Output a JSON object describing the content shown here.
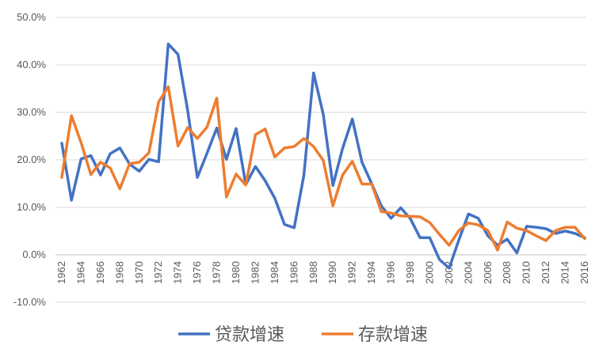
{
  "chart_data": {
    "type": "line",
    "title": "",
    "xlabel": "",
    "ylabel": "",
    "x": [
      1962,
      1963,
      1964,
      1965,
      1966,
      1967,
      1968,
      1969,
      1970,
      1971,
      1972,
      1973,
      1974,
      1975,
      1976,
      1977,
      1978,
      1979,
      1980,
      1981,
      1982,
      1983,
      1984,
      1985,
      1986,
      1987,
      1988,
      1989,
      1990,
      1991,
      1992,
      1993,
      1994,
      1995,
      1996,
      1997,
      1998,
      1999,
      2000,
      2001,
      2002,
      2003,
      2004,
      2005,
      2006,
      2007,
      2008,
      2009,
      2010,
      2011,
      2012,
      2013,
      2014,
      2015,
      2016
    ],
    "x_tick_labels": [
      "1962",
      "1964",
      "1966",
      "1968",
      "1970",
      "1972",
      "1974",
      "1976",
      "1978",
      "1980",
      "1982",
      "1984",
      "1986",
      "1988",
      "1990",
      "1992",
      "1994",
      "1996",
      "1998",
      "2000",
      "2002",
      "2004",
      "2006",
      "2008",
      "2010",
      "2012",
      "2014",
      "2016"
    ],
    "y_tick_labels": [
      "50.0%",
      "40.0%",
      "30.0%",
      "20.0%",
      "10.0%",
      "0.0%",
      "-10.0%"
    ],
    "ylim": [
      -10,
      50
    ],
    "y_unit": "%",
    "grid": true,
    "legend_position": "bottom",
    "series": [
      {
        "name": "贷款增速",
        "color": "#4472c4",
        "values": [
          23.5,
          11.5,
          20.2,
          20.9,
          16.8,
          21.3,
          22.5,
          19.1,
          17.6,
          20.1,
          19.6,
          44.4,
          42.2,
          30.4,
          16.3,
          21.4,
          26.7,
          20.1,
          26.6,
          14.8,
          18.6,
          15.6,
          11.9,
          6.4,
          5.7,
          16.8,
          38.3,
          29.6,
          14.6,
          22.4,
          28.6,
          19.5,
          15.0,
          10.3,
          7.7,
          9.9,
          7.6,
          3.6,
          3.6,
          -1.0,
          -2.8,
          3.1,
          8.6,
          7.7,
          4.0,
          2.0,
          3.3,
          0.4,
          6.0,
          5.8,
          5.5,
          4.5,
          5.0,
          4.5,
          3.6
        ]
      },
      {
        "name": "存款增速",
        "color": "#ed7d31",
        "values": [
          16.3,
          29.3,
          23.6,
          16.9,
          19.5,
          18.3,
          13.9,
          19.2,
          19.5,
          21.5,
          32.2,
          35.4,
          22.9,
          26.8,
          24.5,
          26.9,
          33.0,
          12.2,
          17.0,
          14.7,
          25.3,
          26.5,
          20.6,
          22.5,
          22.8,
          24.5,
          22.8,
          19.9,
          10.3,
          16.8,
          19.7,
          14.9,
          14.9,
          9.1,
          8.8,
          8.2,
          8.1,
          8.0,
          6.8,
          4.3,
          2.0,
          5.1,
          6.7,
          6.3,
          5.1,
          1.0,
          6.9,
          5.6,
          5.1,
          4.0,
          3.0,
          5.1,
          5.8,
          5.8,
          3.4
        ]
      }
    ]
  }
}
